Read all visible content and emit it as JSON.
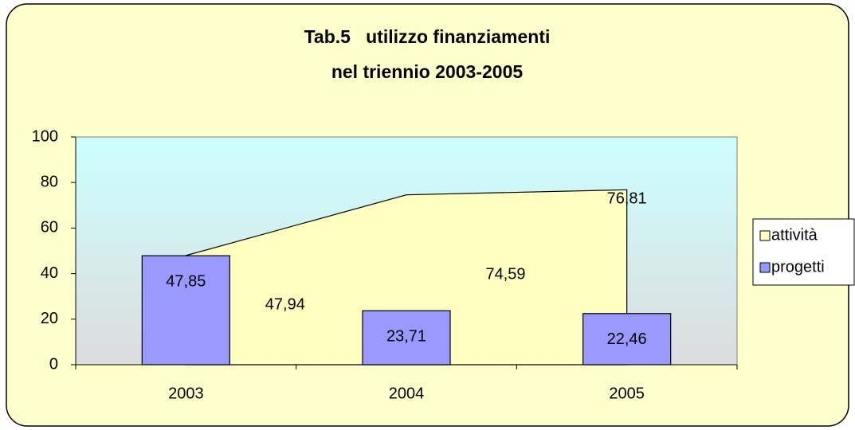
{
  "chart_data": {
    "type": "combo",
    "title": [
      "Tab.5   utilizzo finanziamenti",
      "nel triennio 2003-2005"
    ],
    "categories": [
      "2003",
      "2004",
      "2005"
    ],
    "series": [
      {
        "name": "attività",
        "type": "area",
        "color": "#ffffc0",
        "values": [
          47.94,
          74.59,
          76.81
        ],
        "value_labels": [
          "47,94",
          "74,59",
          "76,81"
        ]
      },
      {
        "name": "progetti",
        "type": "bar",
        "color": "#9999ff",
        "values": [
          47.85,
          23.71,
          22.46
        ],
        "value_labels": [
          "47,85",
          "23,71",
          "22,46"
        ]
      }
    ],
    "ylim": [
      0,
      100
    ],
    "yticks": [
      0,
      20,
      40,
      60,
      80,
      100
    ],
    "grid": false,
    "legend": "right"
  }
}
